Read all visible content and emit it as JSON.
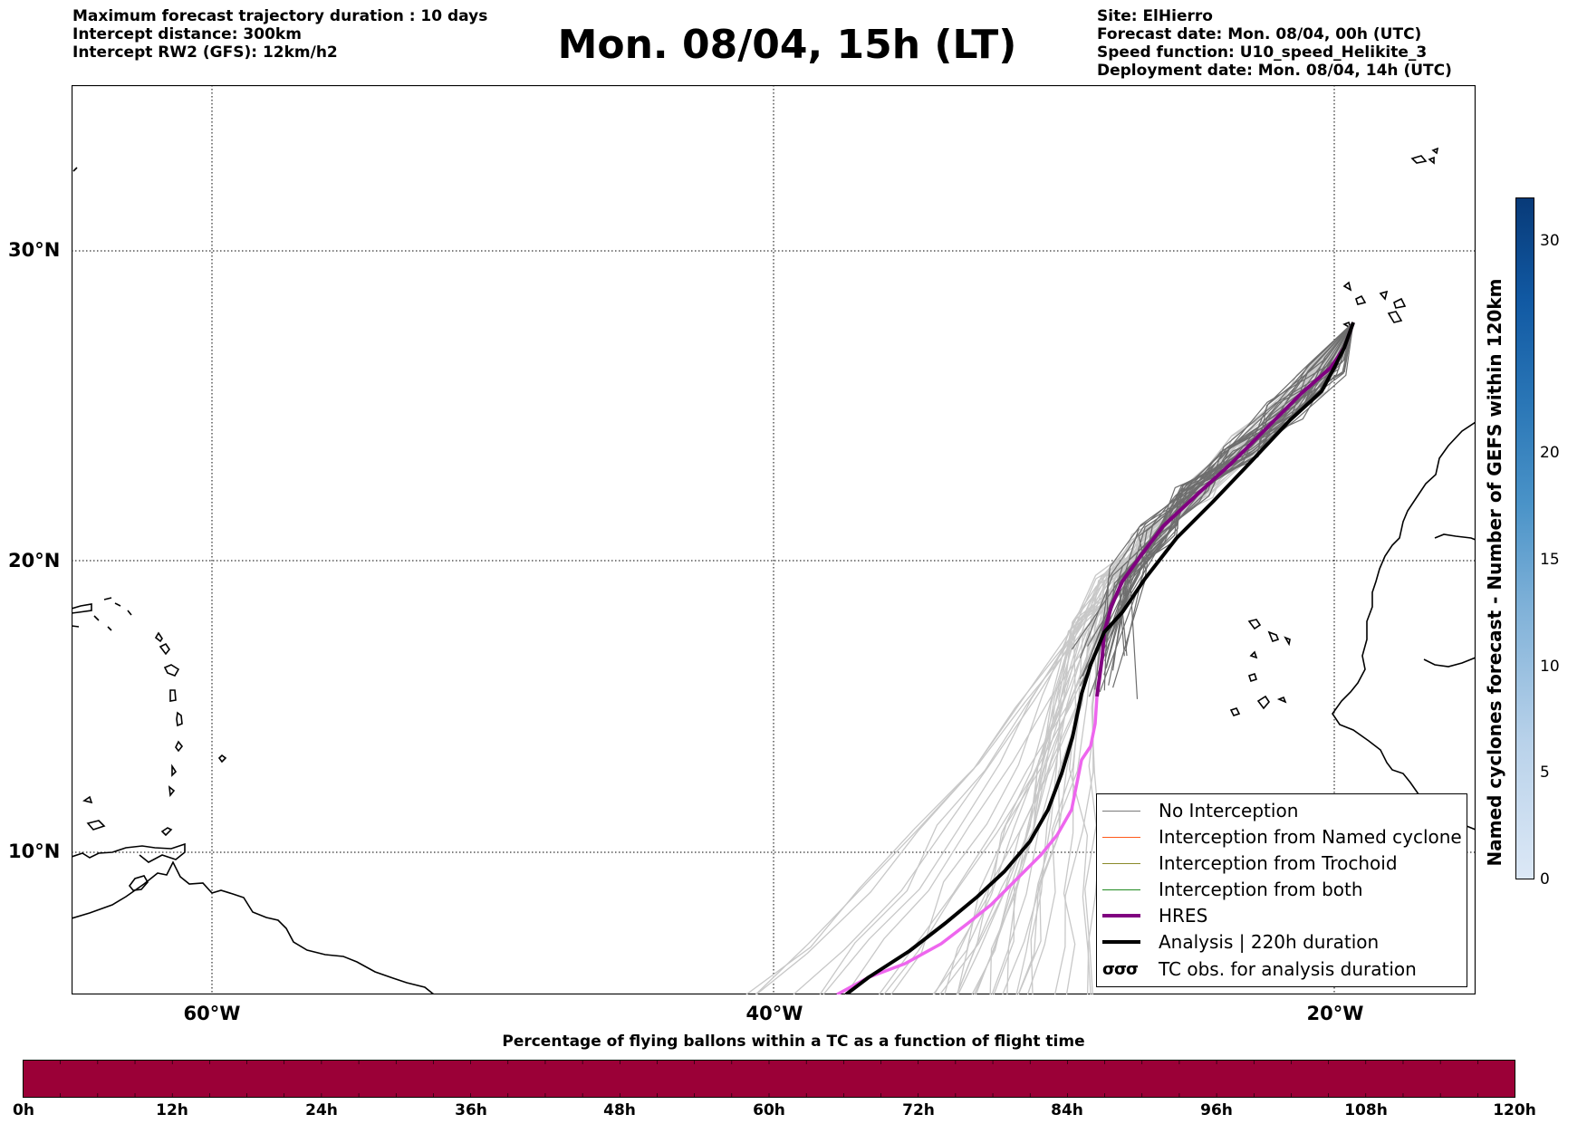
{
  "header": {
    "left_lines": [
      "Maximum forecast trajectory duration : 10 days",
      "Intercept distance: 300km",
      "Intercept RW2 (GFS):  12km/h2"
    ],
    "title": "Mon. 08/04, 15h (LT)",
    "right_lines": [
      "Site: ElHierro",
      "Forecast date: Mon. 08/04, 00h (UTC)",
      "Speed function: U10_speed_Helikite_3",
      "Deployment date: Mon. 08/04, 14h (UTC)"
    ]
  },
  "map": {
    "lat_labels": [
      "30°N",
      "20°N",
      "10°N"
    ],
    "lon_labels": [
      "60°W",
      "40°W",
      "20°W"
    ],
    "colors": {
      "no_interception": "#6e6e6e",
      "light_tracks": "#c8c8c8",
      "hres": "#800080",
      "hres_light": "#ee66ee",
      "analysis": "#000000",
      "coast": "#000000"
    }
  },
  "legend": {
    "items": [
      {
        "label": "No Interception",
        "color": "#7a7a7a",
        "width": 1
      },
      {
        "label": "Interception from Named cyclone",
        "color": "#ff5a1a",
        "width": 1
      },
      {
        "label": "Interception from Trochoid",
        "color": "#8a8a2a",
        "width": 1
      },
      {
        "label": "Interception from both",
        "color": "#228b22",
        "width": 1
      },
      {
        "label": "HRES",
        "color": "#800080",
        "width": 4
      },
      {
        "label": "Analysis | 220h duration",
        "color": "#000000",
        "width": 4
      }
    ],
    "tc_symbol": "σσσ",
    "tc_label": "TC obs. for analysis duration"
  },
  "colorbar": {
    "title": "Named cyclones forecast - Number of GEFS within 120km",
    "ticks": [
      "30",
      "20",
      "15",
      "10",
      "5",
      "0"
    ]
  },
  "bottom_bar": {
    "title": "Percentage of flying ballons within a TC as a function of flight time",
    "ticks": [
      "0h",
      "12h",
      "24h",
      "36h",
      "48h",
      "60h",
      "72h",
      "84h",
      "96h",
      "108h",
      "120h"
    ],
    "fill_color": "#9b0037"
  }
}
